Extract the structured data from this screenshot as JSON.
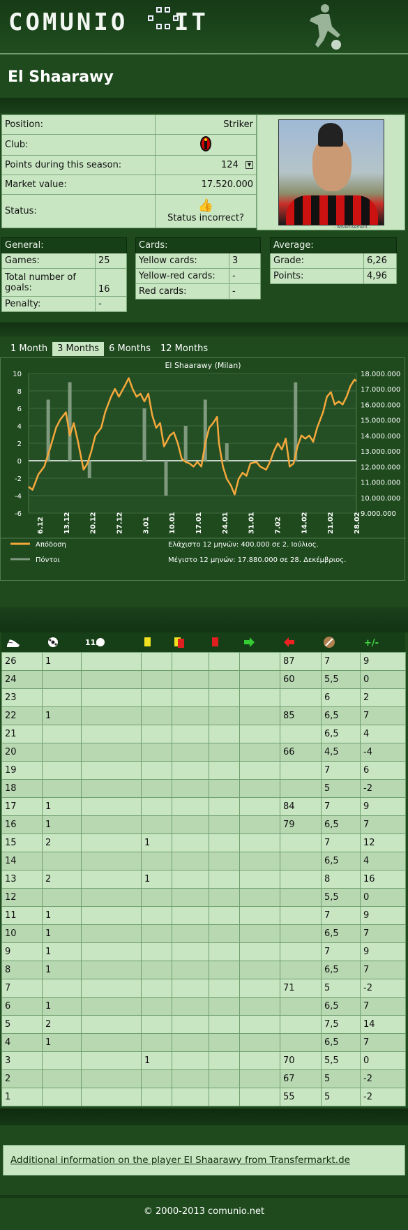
{
  "header": {
    "logo_text": "COMUNIO",
    "logo_suffix": "IT"
  },
  "player": {
    "name": "El Shaarawy"
  },
  "info": {
    "position_label": "Position:",
    "position_value": "Striker",
    "club_label": "Club:",
    "points_label": "Points during this season:",
    "points_value": "124",
    "market_label": "Market value:",
    "market_value": "17.520.000",
    "status_label": "Status:",
    "status_link": "Status incorrect?"
  },
  "photo": {
    "advertisement": "- Advertisement -"
  },
  "general": {
    "title": "General:",
    "rows": [
      {
        "label": "Games:",
        "value": "25"
      },
      {
        "label": "Total number of goals:",
        "value": "16"
      },
      {
        "label": "Penalty:",
        "value": "-"
      }
    ]
  },
  "cards": {
    "title": "Cards:",
    "rows": [
      {
        "label": "Yellow cards:",
        "value": "3"
      },
      {
        "label": "Yellow-red cards:",
        "value": "-"
      },
      {
        "label": "Red cards:",
        "value": "-"
      }
    ]
  },
  "average": {
    "title": "Average:",
    "rows": [
      {
        "label": "Grade:",
        "value": "6,26"
      },
      {
        "label": "Points:",
        "value": "4,96"
      }
    ]
  },
  "tabs": [
    "1 Month",
    "3 Months",
    "6 Months",
    "12 Months"
  ],
  "colors": {
    "line": "#f4a83c",
    "bar": "#7f9a7f"
  },
  "chart_data": {
    "type": "line",
    "title": "El Shaarawy (Milan)",
    "x_ticks": [
      "6.12",
      "13.12",
      "20.12",
      "27.12",
      "3.01",
      "10.01",
      "17.01",
      "24.01",
      "31.01",
      "7.02",
      "14.02",
      "21.02",
      "28.02"
    ],
    "y_left_ticks": [
      "10",
      "8",
      "6",
      "4",
      "2",
      "0",
      "-2",
      "-4",
      "-6"
    ],
    "y_right_ticks": [
      "18.000.000",
      "17.000.000",
      "16.000.000",
      "15.000.000",
      "14.000.000",
      "13.000.000",
      "12.000.000",
      "11.000.000",
      "10.000.000",
      "9.000.000"
    ],
    "y_left_range": [
      -6,
      10
    ],
    "y_right_range": [
      9000000,
      18000000
    ],
    "x_range_days": [
      0,
      90
    ],
    "bars": [
      {
        "day": 10,
        "value": 7
      },
      {
        "day": 21,
        "value": 9
      },
      {
        "day": 31,
        "value": -2
      },
      {
        "day": 59,
        "value": 6
      },
      {
        "day": 70,
        "value": -4
      },
      {
        "day": 80,
        "value": 4
      },
      {
        "day": 90,
        "value": 7
      },
      {
        "day": 101,
        "value": 2
      },
      {
        "day": 136,
        "value": 9
      },
      {
        "day": 131,
        "value": 0
      }
    ],
    "market_values": [
      [
        0,
        10700000
      ],
      [
        2,
        10500000
      ],
      [
        5,
        11500000
      ],
      [
        8,
        12000000
      ],
      [
        11,
        13200000
      ],
      [
        14,
        14500000
      ],
      [
        16,
        15000000
      ],
      [
        19,
        15500000
      ],
      [
        21,
        14000000
      ],
      [
        23,
        14800000
      ],
      [
        25,
        13700000
      ],
      [
        28,
        11800000
      ],
      [
        30,
        12200000
      ],
      [
        32,
        13000000
      ],
      [
        34,
        14000000
      ],
      [
        37,
        14500000
      ],
      [
        39,
        15500000
      ],
      [
        42,
        16500000
      ],
      [
        44,
        17000000
      ],
      [
        46,
        16500000
      ],
      [
        49,
        17200000
      ],
      [
        51,
        17700000
      ],
      [
        53,
        17000000
      ],
      [
        55,
        16500000
      ],
      [
        57,
        16700000
      ],
      [
        59,
        16200000
      ],
      [
        61,
        16700000
      ],
      [
        63,
        15300000
      ],
      [
        65,
        14500000
      ],
      [
        67,
        14800000
      ],
      [
        69,
        13300000
      ],
      [
        72,
        14000000
      ],
      [
        74,
        14200000
      ],
      [
        76,
        13500000
      ],
      [
        78,
        12500000
      ],
      [
        80,
        12300000
      ],
      [
        82,
        12200000
      ],
      [
        84,
        12000000
      ],
      [
        86,
        12300000
      ],
      [
        88,
        12000000
      ],
      [
        90,
        13500000
      ],
      [
        92,
        14500000
      ],
      [
        94,
        14800000
      ],
      [
        96,
        15200000
      ],
      [
        97,
        13500000
      ],
      [
        99,
        12000000
      ],
      [
        101,
        11200000
      ],
      [
        103,
        10800000
      ],
      [
        105,
        10200000
      ],
      [
        107,
        11200000
      ],
      [
        109,
        11600000
      ],
      [
        111,
        11400000
      ],
      [
        113,
        12200000
      ],
      [
        116,
        12300000
      ],
      [
        118,
        12000000
      ],
      [
        121,
        11800000
      ],
      [
        123,
        12300000
      ],
      [
        125,
        13000000
      ],
      [
        127,
        13500000
      ],
      [
        129,
        13100000
      ],
      [
        131,
        13800000
      ],
      [
        133,
        12000000
      ],
      [
        135,
        12200000
      ],
      [
        137,
        13300000
      ],
      [
        139,
        14000000
      ],
      [
        141,
        13800000
      ],
      [
        143,
        14000000
      ],
      [
        145,
        13600000
      ],
      [
        147,
        14500000
      ],
      [
        150,
        15500000
      ],
      [
        152,
        16500000
      ],
      [
        154,
        16800000
      ],
      [
        156,
        16000000
      ],
      [
        158,
        16200000
      ],
      [
        160,
        16000000
      ],
      [
        162,
        16500000
      ],
      [
        164,
        17200000
      ],
      [
        166,
        17600000
      ],
      [
        167,
        17500000
      ]
    ],
    "x_max_day": 167,
    "legend": [
      {
        "name": "Απόδοση",
        "color": "#f4a83c"
      },
      {
        "name": "Πόντοι",
        "color": "#7f9a7f"
      }
    ],
    "notes": [
      "Ελάχιστο 12 μηνών: 400.000 σε 2. Ιούλιος.",
      "Μέγιστο 12 μηνών: 17.880.000 σε 28. Δεκέμβριος."
    ]
  },
  "stats": {
    "header_icons": [
      "boot-icon",
      "ball-icon",
      "penalty-icon",
      "yellow-card-icon",
      "yellow-red-card-icon",
      "red-card-icon",
      "sub-in-icon",
      "sub-out-icon",
      "grade-icon",
      "plus-minus-icon"
    ],
    "header_label_penalty": "11m",
    "header_label_pm": "+/-",
    "rows": [
      [
        "26",
        "1",
        "",
        "",
        "",
        "",
        "",
        "87",
        "7",
        "9"
      ],
      [
        "24",
        "",
        "",
        "",
        "",
        "",
        "",
        "60",
        "5,5",
        "0"
      ],
      [
        "23",
        "",
        "",
        "",
        "",
        "",
        "",
        "",
        "6",
        "2"
      ],
      [
        "22",
        "1",
        "",
        "",
        "",
        "",
        "",
        "85",
        "6,5",
        "7"
      ],
      [
        "21",
        "",
        "",
        "",
        "",
        "",
        "",
        "",
        "6,5",
        "4"
      ],
      [
        "20",
        "",
        "",
        "",
        "",
        "",
        "",
        "66",
        "4,5",
        "-4"
      ],
      [
        "19",
        "",
        "",
        "",
        "",
        "",
        "",
        "",
        "7",
        "6"
      ],
      [
        "18",
        "",
        "",
        "",
        "",
        "",
        "",
        "",
        "5",
        "-2"
      ],
      [
        "17",
        "1",
        "",
        "",
        "",
        "",
        "",
        "84",
        "7",
        "9"
      ],
      [
        "16",
        "1",
        "",
        "",
        "",
        "",
        "",
        "79",
        "6,5",
        "7"
      ],
      [
        "15",
        "2",
        "",
        "1",
        "",
        "",
        "",
        "",
        "7",
        "12"
      ],
      [
        "14",
        "",
        "",
        "",
        "",
        "",
        "",
        "",
        "6,5",
        "4"
      ],
      [
        "13",
        "2",
        "",
        "1",
        "",
        "",
        "",
        "",
        "8",
        "16"
      ],
      [
        "12",
        "",
        "",
        "",
        "",
        "",
        "",
        "",
        "5,5",
        "0"
      ],
      [
        "11",
        "1",
        "",
        "",
        "",
        "",
        "",
        "",
        "7",
        "9"
      ],
      [
        "10",
        "1",
        "",
        "",
        "",
        "",
        "",
        "",
        "6,5",
        "7"
      ],
      [
        "9",
        "1",
        "",
        "",
        "",
        "",
        "",
        "",
        "7",
        "9"
      ],
      [
        "8",
        "1",
        "",
        "",
        "",
        "",
        "",
        "",
        "6,5",
        "7"
      ],
      [
        "7",
        "",
        "",
        "",
        "",
        "",
        "",
        "71",
        "5",
        "-2"
      ],
      [
        "6",
        "1",
        "",
        "",
        "",
        "",
        "",
        "",
        "6,5",
        "7"
      ],
      [
        "5",
        "2",
        "",
        "",
        "",
        "",
        "",
        "",
        "7,5",
        "14"
      ],
      [
        "4",
        "1",
        "",
        "",
        "",
        "",
        "",
        "",
        "6,5",
        "7"
      ],
      [
        "3",
        "",
        "",
        "1",
        "",
        "",
        "",
        "70",
        "5,5",
        "0"
      ],
      [
        "2",
        "",
        "",
        "",
        "",
        "",
        "",
        "67",
        "5",
        "-2"
      ],
      [
        "1",
        "",
        "",
        "",
        "",
        "",
        "",
        "55",
        "5",
        "-2"
      ]
    ]
  },
  "footer": {
    "link": "Additional information on the player El Shaarawy from Transfermarkt.de",
    "copyright": "© 2000-2013 comunio.net"
  }
}
